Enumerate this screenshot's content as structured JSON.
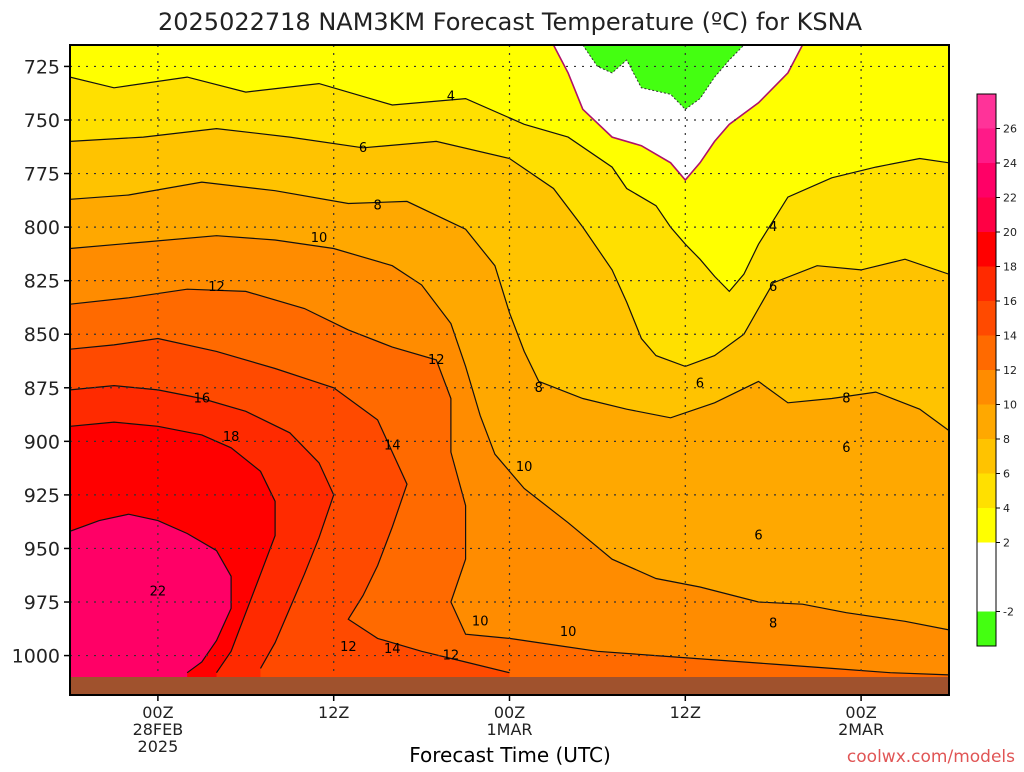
{
  "chart_data": {
    "type": "heatmap",
    "title": "2025022718 NAM3KM Forecast Temperature (ºC) for KSNA",
    "xlabel": "Forecast Time (UTC)",
    "ylabel": "",
    "credit": "coolwx.com/models",
    "x_ticks": [
      {
        "line1": "00Z",
        "line2": "28FEB",
        "line3": "2025",
        "hour": 6
      },
      {
        "line1": "12Z",
        "line2": "",
        "line3": "",
        "hour": 18
      },
      {
        "line1": "00Z",
        "line2": "1MAR",
        "line3": "",
        "hour": 30
      },
      {
        "line1": "12Z",
        "line2": "",
        "line3": "",
        "hour": 42
      },
      {
        "line1": "00Z",
        "line2": "2MAR",
        "line3": "",
        "hour": 54
      }
    ],
    "x_range_hours": [
      0,
      60
    ],
    "y_ticks": [
      725,
      750,
      775,
      800,
      825,
      850,
      875,
      900,
      925,
      950,
      975,
      1000
    ],
    "y_range_hPa": [
      715,
      1010
    ],
    "y_axis": "pressure (hPa), inverted",
    "colorbar": {
      "ticks": [
        -2,
        2,
        4,
        6,
        8,
        10,
        12,
        14,
        16,
        18,
        20,
        22,
        24,
        26
      ],
      "bands": [
        {
          "lo": -4,
          "hi": -2,
          "color": "#44ff11"
        },
        {
          "lo": -2,
          "hi": 2,
          "color": "#ffffff"
        },
        {
          "lo": 2,
          "hi": 4,
          "color": "#ffff00"
        },
        {
          "lo": 4,
          "hi": 6,
          "color": "#ffe000"
        },
        {
          "lo": 6,
          "hi": 8,
          "color": "#ffc300"
        },
        {
          "lo": 8,
          "hi": 10,
          "color": "#ffa800"
        },
        {
          "lo": 10,
          "hi": 12,
          "color": "#ff8c00"
        },
        {
          "lo": 12,
          "hi": 14,
          "color": "#ff6a00"
        },
        {
          "lo": 14,
          "hi": 16,
          "color": "#ff4a00"
        },
        {
          "lo": 16,
          "hi": 18,
          "color": "#ff2a00"
        },
        {
          "lo": 18,
          "hi": 20,
          "color": "#ff0000"
        },
        {
          "lo": 20,
          "hi": 22,
          "color": "#ff0044"
        },
        {
          "lo": 22,
          "hi": 24,
          "color": "#ff0066"
        },
        {
          "lo": 24,
          "hi": 26,
          "color": "#ff1a88"
        },
        {
          "lo": 26,
          "hi": 28,
          "color": "#ff3399"
        }
      ]
    },
    "contour_labels": [
      {
        "text": "4",
        "hour": 26,
        "p": 739
      },
      {
        "text": "6",
        "hour": 20,
        "p": 763
      },
      {
        "text": "8",
        "hour": 21,
        "p": 790
      },
      {
        "text": "10",
        "hour": 17,
        "p": 805
      },
      {
        "text": "12",
        "hour": 10,
        "p": 828
      },
      {
        "text": "16",
        "hour": 9,
        "p": 880
      },
      {
        "text": "18",
        "hour": 11,
        "p": 898
      },
      {
        "text": "22",
        "hour": 6,
        "p": 970
      },
      {
        "text": "14",
        "hour": 22,
        "p": 902
      },
      {
        "text": "12",
        "hour": 25,
        "p": 862
      },
      {
        "text": "8",
        "hour": 32,
        "p": 875
      },
      {
        "text": "10",
        "hour": 31,
        "p": 912
      },
      {
        "text": "10",
        "hour": 28,
        "p": 984
      },
      {
        "text": "10",
        "hour": 34,
        "p": 989
      },
      {
        "text": "12",
        "hour": 19,
        "p": 996
      },
      {
        "text": "14",
        "hour": 22,
        "p": 997
      },
      {
        "text": "12",
        "hour": 26,
        "p": 1000
      },
      {
        "text": "6",
        "hour": 43,
        "p": 873
      },
      {
        "text": "6",
        "hour": 47,
        "p": 944
      },
      {
        "text": "8",
        "hour": 48,
        "p": 985
      },
      {
        "text": "4",
        "hour": 48,
        "p": 800
      },
      {
        "text": "6",
        "hour": 48,
        "p": 828
      },
      {
        "text": "8",
        "hour": 53,
        "p": 880
      },
      {
        "text": "6",
        "hour": 53,
        "p": 903
      }
    ],
    "isotherms": [
      {
        "t": 4,
        "pts": [
          [
            0,
            730
          ],
          [
            3,
            735
          ],
          [
            8,
            730
          ],
          [
            12,
            737
          ],
          [
            17,
            733
          ],
          [
            22,
            743
          ],
          [
            27,
            740
          ],
          [
            31,
            752
          ],
          [
            34,
            758
          ],
          [
            37,
            772
          ],
          [
            38,
            782
          ],
          [
            40,
            790
          ],
          [
            41,
            800
          ],
          [
            42,
            808
          ],
          [
            43,
            815
          ],
          [
            44,
            823
          ],
          [
            45,
            830
          ],
          [
            46,
            822
          ],
          [
            47,
            808
          ],
          [
            48,
            797
          ],
          [
            49,
            786
          ],
          [
            52,
            777
          ],
          [
            55,
            772
          ],
          [
            58,
            768
          ],
          [
            60,
            770
          ]
        ]
      },
      {
        "t": 6,
        "pts": [
          [
            0,
            760
          ],
          [
            5,
            758
          ],
          [
            10,
            754
          ],
          [
            15,
            758
          ],
          [
            20,
            763
          ],
          [
            25,
            760
          ],
          [
            30,
            768
          ],
          [
            33,
            782
          ],
          [
            35,
            800
          ],
          [
            37,
            820
          ],
          [
            38,
            835
          ],
          [
            39,
            852
          ],
          [
            40,
            860
          ],
          [
            42,
            865
          ],
          [
            44,
            860
          ],
          [
            46,
            850
          ],
          [
            47,
            838
          ],
          [
            48,
            826
          ],
          [
            51,
            818
          ],
          [
            54,
            820
          ],
          [
            57,
            815
          ],
          [
            60,
            822
          ]
        ]
      },
      {
        "t": 8,
        "pts": [
          [
            0,
            787
          ],
          [
            4,
            785
          ],
          [
            9,
            779
          ],
          [
            14,
            783
          ],
          [
            19,
            789
          ],
          [
            23,
            788
          ],
          [
            27,
            801
          ],
          [
            29,
            818
          ],
          [
            30,
            840
          ],
          [
            31,
            858
          ],
          [
            32,
            872
          ],
          [
            35,
            880
          ],
          [
            38,
            885
          ],
          [
            41,
            889
          ],
          [
            44,
            882
          ],
          [
            47,
            872
          ],
          [
            49,
            882
          ],
          [
            52,
            880
          ],
          [
            55,
            877
          ],
          [
            58,
            885
          ],
          [
            60,
            895
          ]
        ]
      },
      {
        "t": 10,
        "pts": [
          [
            0,
            810
          ],
          [
            5,
            807
          ],
          [
            10,
            804
          ],
          [
            14,
            806
          ],
          [
            18,
            810
          ],
          [
            22,
            818
          ],
          [
            24,
            827
          ],
          [
            26,
            845
          ],
          [
            27,
            865
          ],
          [
            28,
            888
          ],
          [
            29,
            906
          ],
          [
            31,
            922
          ],
          [
            34,
            938
          ],
          [
            37,
            955
          ],
          [
            40,
            964
          ],
          [
            43,
            968
          ],
          [
            47,
            975
          ],
          [
            50,
            976
          ],
          [
            53,
            980
          ],
          [
            57,
            984
          ],
          [
            60,
            988
          ]
        ]
      },
      {
        "t": 12,
        "pts": [
          [
            0,
            836
          ],
          [
            4,
            833
          ],
          [
            8,
            829
          ],
          [
            12,
            830
          ],
          [
            16,
            838
          ],
          [
            19,
            848
          ],
          [
            22,
            856
          ],
          [
            25,
            862
          ],
          [
            26,
            880
          ],
          [
            26,
            905
          ],
          [
            27,
            930
          ],
          [
            27,
            955
          ],
          [
            26,
            975
          ],
          [
            27,
            990
          ],
          [
            30,
            992
          ],
          [
            33,
            995
          ],
          [
            36,
            998
          ],
          [
            40,
            1000
          ],
          [
            44,
            1002
          ],
          [
            48,
            1004
          ],
          [
            52,
            1006
          ],
          [
            56,
            1008
          ],
          [
            60,
            1009
          ]
        ]
      },
      {
        "t": 14,
        "pts": [
          [
            0,
            857
          ],
          [
            3,
            855
          ],
          [
            6,
            852
          ],
          [
            10,
            858
          ],
          [
            14,
            866
          ],
          [
            18,
            875
          ],
          [
            21,
            890
          ],
          [
            22,
            905
          ],
          [
            23,
            920
          ],
          [
            22,
            940
          ],
          [
            21,
            958
          ],
          [
            20,
            972
          ],
          [
            19,
            983
          ],
          [
            21,
            992
          ],
          [
            24,
            998
          ],
          [
            27,
            1003
          ],
          [
            30,
            1008
          ]
        ]
      },
      {
        "t": 16,
        "pts": [
          [
            0,
            876
          ],
          [
            3,
            874
          ],
          [
            6,
            876
          ],
          [
            9,
            880
          ],
          [
            12,
            886
          ],
          [
            15,
            896
          ],
          [
            17,
            910
          ],
          [
            18,
            925
          ],
          [
            17,
            945
          ],
          [
            16,
            962
          ],
          [
            15,
            978
          ],
          [
            14,
            994
          ],
          [
            13,
            1006
          ]
        ]
      },
      {
        "t": 18,
        "pts": [
          [
            0,
            893
          ],
          [
            3,
            891
          ],
          [
            6,
            893
          ],
          [
            9,
            897
          ],
          [
            11,
            903
          ],
          [
            13,
            914
          ],
          [
            14,
            928
          ],
          [
            14,
            944
          ],
          [
            13,
            962
          ],
          [
            12,
            980
          ],
          [
            11,
            998
          ],
          [
            10,
            1008
          ]
        ]
      },
      {
        "t": 22,
        "pts": [
          [
            0,
            942
          ],
          [
            2,
            937
          ],
          [
            4,
            934
          ],
          [
            6,
            937
          ],
          [
            8,
            943
          ],
          [
            10,
            951
          ],
          [
            11,
            963
          ],
          [
            11,
            978
          ],
          [
            10,
            993
          ],
          [
            9,
            1003
          ],
          [
            8,
            1008
          ]
        ]
      }
    ],
    "freezing_region": {
      "t_below": -2,
      "pts": [
        [
          35,
          715
        ],
        [
          36,
          725
        ],
        [
          37,
          728
        ],
        [
          38,
          722
        ],
        [
          39,
          735
        ],
        [
          41,
          738
        ],
        [
          42,
          745
        ],
        [
          43,
          740
        ],
        [
          44,
          730
        ],
        [
          45,
          722
        ],
        [
          46,
          715
        ]
      ]
    },
    "zero_line": {
      "t": 0,
      "pts": [
        [
          33,
          715
        ],
        [
          34,
          728
        ],
        [
          35,
          745
        ],
        [
          37,
          758
        ],
        [
          39,
          762
        ],
        [
          41,
          770
        ],
        [
          42,
          778
        ],
        [
          43,
          770
        ],
        [
          44,
          760
        ],
        [
          45,
          752
        ],
        [
          47,
          742
        ],
        [
          49,
          728
        ],
        [
          50,
          715
        ]
      ]
    }
  }
}
